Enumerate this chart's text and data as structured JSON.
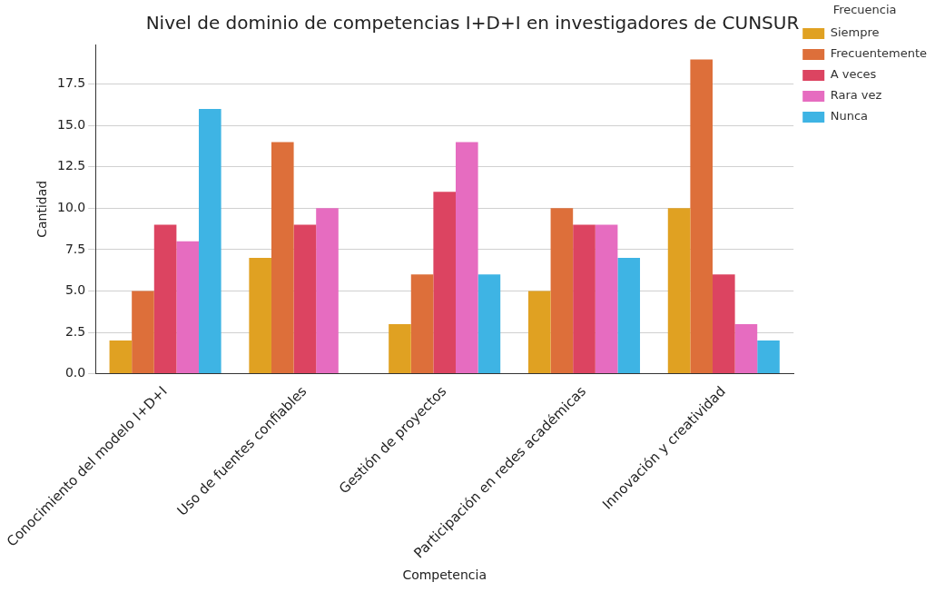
{
  "chart_data": {
    "type": "bar",
    "title": "Nivel de dominio de competencias I+D+I en investigadores de CUNSUR",
    "xlabel": "Competencia",
    "ylabel": "Cantidad",
    "legend_title": "Frecuencia",
    "categories": [
      "Conocimiento del modelo I+D+I",
      "Uso de fuentes confiables",
      "Gestión de proyectos",
      "Participación en redes académicas",
      "Innovación y creatividad"
    ],
    "series": [
      {
        "name": "Siempre",
        "color": "#e0a122",
        "values": [
          2,
          7,
          3,
          5,
          10
        ]
      },
      {
        "name": "Frecuentemente",
        "color": "#dd6f3a",
        "values": [
          5,
          14,
          6,
          10,
          19
        ]
      },
      {
        "name": "A veces",
        "color": "#dc4461",
        "values": [
          9,
          9,
          11,
          9,
          6
        ]
      },
      {
        "name": "Rara vez",
        "color": "#e66cc0",
        "values": [
          8,
          10,
          14,
          9,
          3
        ]
      },
      {
        "name": "Nunca",
        "color": "#3eb4e4",
        "values": [
          16,
          0,
          6,
          7,
          2
        ]
      }
    ],
    "ylim": [
      0,
      19.9
    ],
    "yticks": [
      {
        "value": 0,
        "label": "0.0"
      },
      {
        "value": 2.5,
        "label": "2.5"
      },
      {
        "value": 5,
        "label": "5.0"
      },
      {
        "value": 7.5,
        "label": "7.5"
      },
      {
        "value": 10,
        "label": "10.0"
      },
      {
        "value": 12.5,
        "label": "12.5"
      },
      {
        "value": 15,
        "label": "15.0"
      },
      {
        "value": 17.5,
        "label": "17.5"
      }
    ],
    "grid": "y",
    "legend": "right"
  }
}
